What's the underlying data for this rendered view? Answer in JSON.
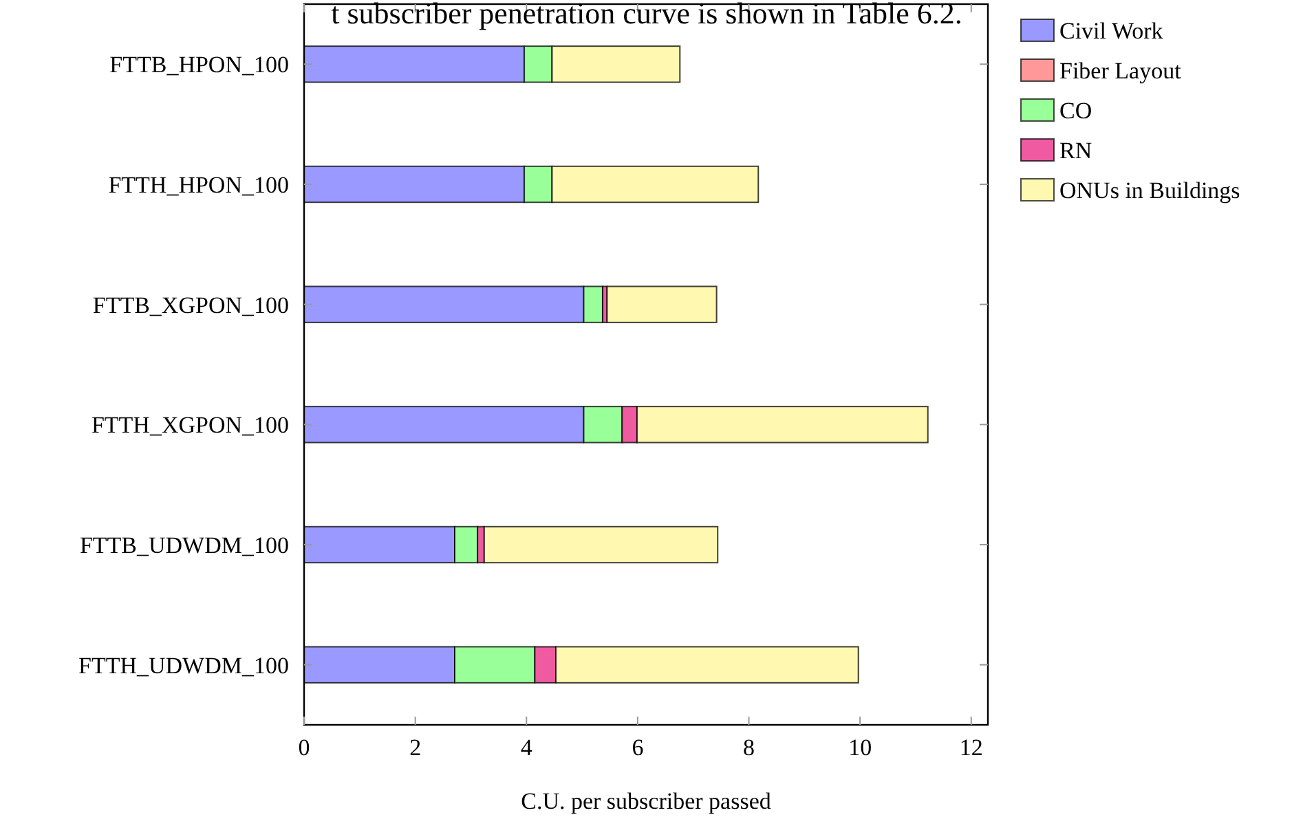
{
  "chart_data": {
    "type": "bar",
    "orientation": "horizontal",
    "stacked": true,
    "categories": [
      "FTTB_HPON_100",
      "FTTH_HPON_100",
      "FTTB_XGPON_100",
      "FTTH_XGPON_100",
      "FTTB_UDWDM_100",
      "FTTH_UDWDM_100"
    ],
    "series": [
      {
        "name": "Civil Work",
        "color": "#9999ff",
        "values": [
          3.96,
          3.96,
          5.03,
          5.03,
          2.71,
          2.71
        ]
      },
      {
        "name": "Fiber Layout",
        "color": "#ff9999",
        "values": [
          0,
          0,
          0,
          0,
          0,
          0
        ]
      },
      {
        "name": "CO",
        "color": "#99ff99",
        "values": [
          0.5,
          0.5,
          0.34,
          0.69,
          0.41,
          1.44
        ]
      },
      {
        "name": "RN",
        "color": "#f05aa0",
        "values": [
          0,
          0,
          0.08,
          0.27,
          0.12,
          0.38
        ]
      },
      {
        "name": "ONUs in Buildings",
        "color": "#fff8b0",
        "values": [
          2.3,
          3.71,
          1.97,
          5.23,
          4.2,
          5.44
        ]
      }
    ],
    "xlim": [
      0,
      12.3
    ],
    "xticks": [
      0,
      2,
      4,
      6,
      8,
      10,
      12
    ],
    "xlabel": "C.U. per subscriber passed",
    "legend": "top right",
    "grid": false,
    "annotations": [
      "t subscriber penetration curve is shown in Table 6.2."
    ]
  }
}
